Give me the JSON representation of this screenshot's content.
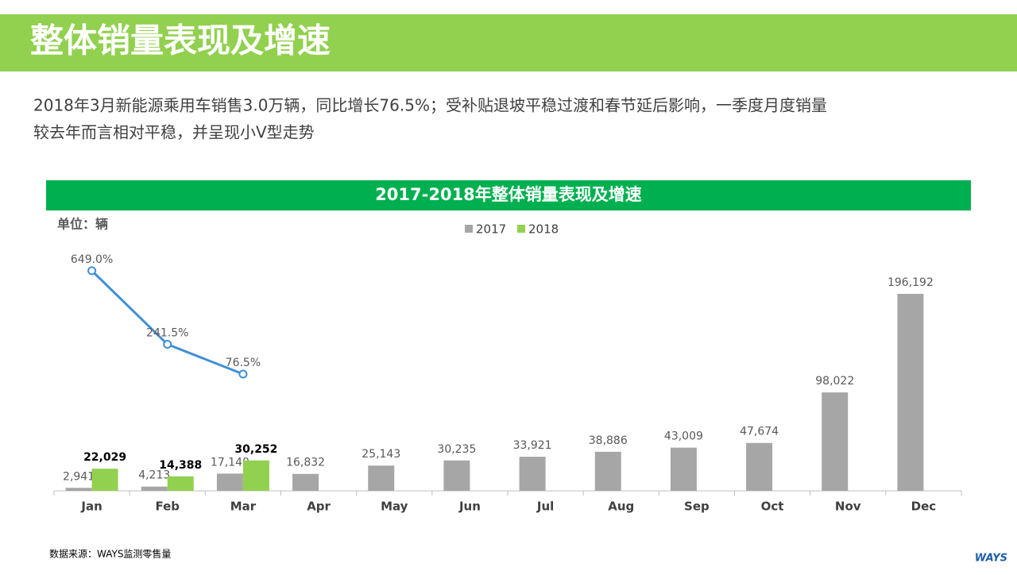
{
  "header": {
    "title": "整体销量表现及增速"
  },
  "summary": [
    "2018年3月新能源乘用车销售3.0万辆，同比增长76.5%；受补贴退坡平稳过渡和春节延后影响，一季度月度销量",
    "较去年而言相对平稳，并呈现小V型走势"
  ],
  "chart_data": {
    "type": "bar",
    "title": "2017-2018年整体销量表现及增速",
    "unit_label": "单位：辆",
    "categories": [
      "Jan",
      "Feb",
      "Mar",
      "Apr",
      "May",
      "Jun",
      "Jul",
      "Aug",
      "Sep",
      "Oct",
      "Nov",
      "Dec"
    ],
    "series": [
      {
        "name": "2017",
        "color": "#a6a6a6",
        "values": [
          2941,
          4213,
          17140,
          16832,
          25143,
          30235,
          33921,
          38886,
          43009,
          47674,
          98022,
          196192
        ],
        "value_labels": [
          "2,941",
          "4,213",
          "17,140",
          "16,832",
          "25,143",
          "30,235",
          "33,921",
          "38,886",
          "43,009",
          "47,674",
          "98,022",
          "196,192"
        ]
      },
      {
        "name": "2018",
        "color": "#92d050",
        "values": [
          22029,
          14388,
          30252,
          null,
          null,
          null,
          null,
          null,
          null,
          null,
          null,
          null
        ],
        "value_labels": [
          "22,029",
          "14,388",
          "30,252",
          null,
          null,
          null,
          null,
          null,
          null,
          null,
          null,
          null
        ]
      },
      {
        "type": "line",
        "axis": "y2",
        "color": "#3f8fd8",
        "values": [
          649.0,
          241.5,
          76.5,
          null,
          null,
          null,
          null,
          null,
          null,
          null,
          null,
          null
        ],
        "value_labels": [
          "649.0%",
          "241.5%",
          "76.5%",
          null,
          null,
          null,
          null,
          null,
          null,
          null,
          null,
          null
        ]
      }
    ],
    "ylim": [
      0,
      250000
    ],
    "y2lim": [
      -570,
      820
    ]
  },
  "footer": {
    "source": "数据来源：WAYS监测零售量",
    "logo": "WAYS"
  }
}
